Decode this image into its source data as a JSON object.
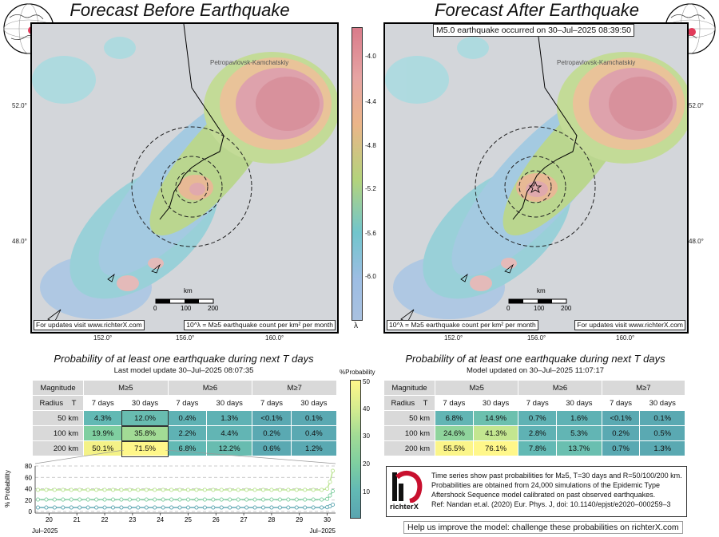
{
  "left_map": {
    "title": "Forecast Before Earthquake",
    "city": "Petropavlovsk-Kamchatskiy",
    "lat_ticks": [
      "52.0°",
      "48.0°"
    ],
    "lon_ticks": [
      "152.0°",
      "156.0°",
      "160.0°"
    ],
    "scale": {
      "unit": "km",
      "labels": [
        "0",
        "100",
        "200"
      ]
    },
    "footer_left": "For updates visit www.richterX.com",
    "footer_right": "10^λ = M≥5 earthquake count per km² per month"
  },
  "right_map": {
    "title": "Forecast After Earthquake",
    "banner": "M5.0 earthquake occurred on 30–Jul–2025 08:39:50",
    "city": "Petropavlovsk-Kamchatskiy",
    "lat_ticks": [
      "52.0°",
      "48.0°"
    ],
    "lon_ticks": [
      "152.0°",
      "156.0°",
      "160.0°"
    ],
    "scale": {
      "unit": "km",
      "labels": [
        "0",
        "100",
        "200"
      ]
    },
    "footer_left": "10^λ = M≥5 earthquake count per km² per month",
    "footer_right": "For updates visit www.richterX.com"
  },
  "lambda_colorbar": {
    "ticks": [
      "-4.0",
      "-4.4",
      "-4.8",
      "-5.2",
      "-5.6",
      "-6.0"
    ],
    "symbol": "λ",
    "colors": [
      "#d97b8a",
      "#ebb589",
      "#b3d37c",
      "#71c5cc",
      "#9dbde3"
    ]
  },
  "prob_colorbar": {
    "title": "%Probability",
    "ticks": [
      "50",
      "40",
      "30",
      "20",
      "10"
    ],
    "colors": [
      "#fff78a",
      "#b9e38f",
      "#7fcfa0",
      "#62b9b4",
      "#5aa5b0"
    ]
  },
  "left_table": {
    "title": "Probability of at least one earthquake during next T days",
    "update": "Last model update 30–Jul–2025 08:07:35",
    "header_mag": "Magnitude",
    "header_radius": "Radius",
    "header_t": "T",
    "mags": [
      "M≥5",
      "M≥6",
      "M≥7"
    ],
    "periods": [
      "7 days",
      "30 days",
      "7 days",
      "30 days",
      "7 days",
      "30 days"
    ],
    "rows": [
      {
        "radius": "50 km",
        "cells": [
          "4.3%",
          "12.0%",
          "0.4%",
          "1.3%",
          "<0.1%",
          "0.1%"
        ]
      },
      {
        "radius": "100 km",
        "cells": [
          "19.9%",
          "35.8%",
          "2.2%",
          "4.4%",
          "0.2%",
          "0.4%"
        ]
      },
      {
        "radius": "200 km",
        "cells": [
          "50.1%",
          "71.5%",
          "6.8%",
          "12.2%",
          "0.6%",
          "1.2%"
        ]
      }
    ]
  },
  "right_table": {
    "title": "Probability of at least one earthquake during next T days",
    "update": "Model updated on 30–Jul–2025 11:07:17",
    "header_mag": "Magnitude",
    "header_radius": "Radius",
    "header_t": "T",
    "mags": [
      "M≥5",
      "M≥6",
      "M≥7"
    ],
    "periods": [
      "7 days",
      "30 days",
      "7 days",
      "30 days",
      "7 days",
      "30 days"
    ],
    "rows": [
      {
        "radius": "50 km",
        "cells": [
          "6.8%",
          "14.9%",
          "0.7%",
          "1.6%",
          "<0.1%",
          "0.1%"
        ]
      },
      {
        "radius": "100 km",
        "cells": [
          "24.6%",
          "41.3%",
          "2.8%",
          "5.3%",
          "0.2%",
          "0.5%"
        ]
      },
      {
        "radius": "200 km",
        "cells": [
          "55.5%",
          "76.1%",
          "7.8%",
          "13.7%",
          "0.7%",
          "1.3%"
        ]
      }
    ]
  },
  "chart_data": {
    "type": "line",
    "ylabel": "% Probability",
    "ylim": [
      0,
      80
    ],
    "yticks": [
      0,
      20,
      40,
      60,
      80
    ],
    "xlim": [
      19.5,
      30.3
    ],
    "xticks": [
      20,
      21,
      22,
      23,
      24,
      25,
      26,
      27,
      28,
      29,
      30
    ],
    "xtick_labels": [
      "20",
      "21",
      "22",
      "23",
      "24",
      "25",
      "26",
      "27",
      "28",
      "29",
      "30"
    ],
    "x_start_label": "Jul–2025",
    "x_end_label": "Jul–2025",
    "grid": "horizontal dashed",
    "series": [
      {
        "color": "#b9e38f",
        "x": [
          19.6,
          19.9,
          20.2,
          20.5,
          20.8,
          21.1,
          21.4,
          21.7,
          22.0,
          22.3,
          22.6,
          22.9,
          23.2,
          23.5,
          23.8,
          24.1,
          24.4,
          24.7,
          25.0,
          25.3,
          25.6,
          25.9,
          26.2,
          26.5,
          26.8,
          27.1,
          27.4,
          27.7,
          28.0,
          28.3,
          28.6,
          28.9,
          29.2,
          29.5,
          29.8,
          30.0,
          30.1,
          30.2
        ],
        "values": [
          38,
          38,
          38,
          38,
          38,
          38,
          38,
          38,
          38,
          38,
          38,
          38,
          38,
          38,
          38,
          38,
          38,
          38,
          38,
          38,
          38,
          38,
          38,
          38,
          38,
          38,
          38,
          38,
          38,
          38,
          38,
          38,
          38,
          38,
          38,
          40,
          52,
          71.5
        ]
      },
      {
        "color": "#7fcfa0",
        "x": [
          19.6,
          19.9,
          20.2,
          20.5,
          20.8,
          21.1,
          21.4,
          21.7,
          22.0,
          22.3,
          22.6,
          22.9,
          23.2,
          23.5,
          23.8,
          24.1,
          24.4,
          24.7,
          25.0,
          25.3,
          25.6,
          25.9,
          26.2,
          26.5,
          26.8,
          27.1,
          27.4,
          27.7,
          28.0,
          28.3,
          28.6,
          28.9,
          29.2,
          29.5,
          29.8,
          30.0,
          30.1,
          30.2
        ],
        "values": [
          21,
          21,
          21,
          21,
          21,
          21,
          21,
          21,
          21,
          21,
          21,
          21,
          21,
          21,
          21,
          21,
          21,
          21,
          21,
          21,
          21,
          21,
          21,
          21,
          21,
          21,
          21,
          21,
          21,
          21,
          21,
          21,
          21,
          21,
          21,
          22,
          28,
          35.8
        ]
      },
      {
        "color": "#5aa5b0",
        "x": [
          19.6,
          19.9,
          20.2,
          20.5,
          20.8,
          21.1,
          21.4,
          21.7,
          22.0,
          22.3,
          22.6,
          22.9,
          23.2,
          23.5,
          23.8,
          24.1,
          24.4,
          24.7,
          25.0,
          25.3,
          25.6,
          25.9,
          26.2,
          26.5,
          26.8,
          27.1,
          27.4,
          27.7,
          28.0,
          28.3,
          28.6,
          28.9,
          29.2,
          29.5,
          29.8,
          30.0,
          30.1,
          30.2
        ],
        "values": [
          7,
          7,
          7,
          7,
          7,
          7,
          7,
          7,
          7,
          7,
          7,
          7,
          7,
          7,
          7,
          7,
          7,
          7,
          7,
          7,
          7,
          7,
          7,
          7,
          7,
          7,
          7,
          7,
          7,
          7,
          7,
          7,
          7,
          7,
          7,
          7.5,
          9,
          12
        ]
      }
    ]
  },
  "note": {
    "logo_text": "richterX",
    "lines": [
      "Time series show past probabilities for M≥5, T=30 days and R=50/100/200 km.",
      "Probabilities are obtained from 24,000 simulations of the Epidemic Type",
      "Aftershock Sequence model calibrated on past observed earthquakes.",
      "Ref: Nandan et.al. (2020) Eur. Phys. J, doi: 10.1140/epjst/e2020–000259–3"
    ]
  },
  "help_text": "Help us improve the model: challenge these probabilities on richterX.com"
}
